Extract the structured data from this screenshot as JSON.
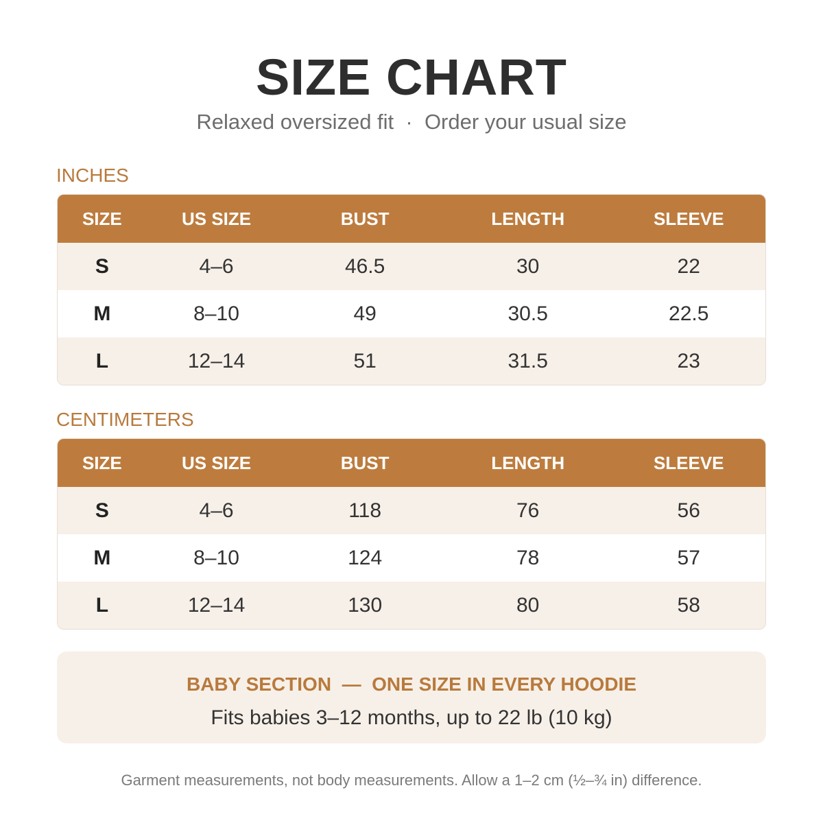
{
  "header": {
    "title": "SIZE CHART",
    "subtitle": "Relaxed oversized fit  ·  Order your usual size"
  },
  "sections": [
    {
      "label": "INCHES",
      "table": {
        "columns": [
          "SIZE",
          "US SIZE",
          "BUST",
          "LENGTH",
          "SLEEVE"
        ],
        "rows": [
          [
            "S",
            "4–6",
            "46.5",
            "30",
            "22"
          ],
          [
            "M",
            "8–10",
            "49",
            "30.5",
            "22.5"
          ],
          [
            "L",
            "12–14",
            "51",
            "31.5",
            "23"
          ]
        ]
      }
    },
    {
      "label": "CENTIMETERS",
      "table": {
        "columns": [
          "SIZE",
          "US SIZE",
          "BUST",
          "LENGTH",
          "SLEEVE"
        ],
        "rows": [
          [
            "S",
            "4–6",
            "118",
            "76",
            "56"
          ],
          [
            "M",
            "8–10",
            "124",
            "78",
            "57"
          ],
          [
            "L",
            "12–14",
            "130",
            "80",
            "58"
          ]
        ]
      }
    }
  ],
  "baby": {
    "heading": "BABY SECTION  —  ONE SIZE IN EVERY HOODIE",
    "text": "Fits babies 3–12 months, up to 22 lb (10 kg)"
  },
  "footer": {
    "note": "Garment measurements, not body measurements. Allow a 1–2 cm (½–¾ in) difference."
  }
}
